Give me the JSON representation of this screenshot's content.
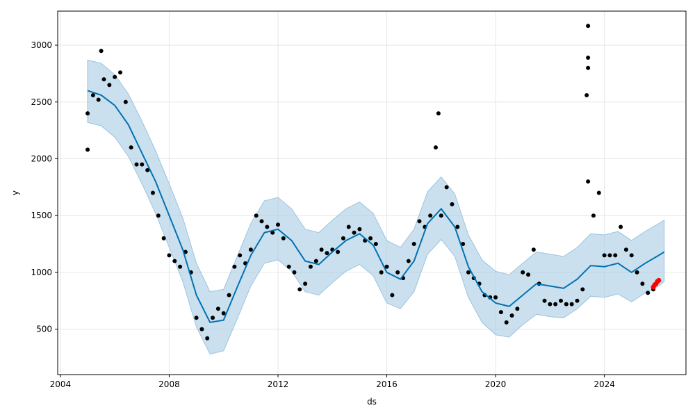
{
  "chart_data": {
    "type": "scatter",
    "xlabel": "ds",
    "ylabel": "y",
    "xlim": [
      2003.9,
      2027.0
    ],
    "ylim": [
      100,
      3300
    ],
    "x_ticks": [
      2004,
      2008,
      2012,
      2016,
      2020,
      2024
    ],
    "x_tick_labels": [
      "2004",
      "2008",
      "2012",
      "2016",
      "2020",
      "2024"
    ],
    "y_ticks": [
      500,
      1000,
      1500,
      2000,
      2500,
      3000
    ],
    "y_tick_labels": [
      "500",
      "1000",
      "1500",
      "2000",
      "2500",
      "3000"
    ],
    "grid": true,
    "colors": {
      "observed": "#000000",
      "recent": "#ff0000",
      "forecast": "#0072b2",
      "interval": "#a6cbe3",
      "interval_edge": "#9cc3e0",
      "grid": "#e6e6e6"
    },
    "observed": {
      "x": [
        2005.0,
        2005.2,
        2005.4,
        2005.6,
        2005.8,
        2006.0,
        2006.2,
        2006.4,
        2006.6,
        2006.8,
        2007.0,
        2007.2,
        2007.4,
        2007.6,
        2007.8,
        2008.0,
        2008.2,
        2008.4,
        2008.6,
        2008.8,
        2009.0,
        2009.2,
        2009.4,
        2009.6,
        2009.8,
        2010.0,
        2010.2,
        2010.4,
        2010.6,
        2010.8,
        2011.0,
        2011.2,
        2011.4,
        2011.6,
        2011.8,
        2012.0,
        2012.2,
        2012.4,
        2012.6,
        2012.8,
        2013.0,
        2013.2,
        2013.4,
        2013.6,
        2013.8,
        2014.0,
        2014.2,
        2014.4,
        2014.6,
        2014.8,
        2015.0,
        2015.2,
        2015.4,
        2015.6,
        2015.8,
        2016.0,
        2016.2,
        2016.4,
        2016.6,
        2016.8,
        2017.0,
        2017.2,
        2017.4,
        2017.6,
        2017.8,
        2018.0,
        2018.2,
        2018.4,
        2018.6,
        2018.8,
        2019.0,
        2019.2,
        2019.4,
        2019.6,
        2019.8,
        2020.0,
        2020.2,
        2020.4,
        2020.6,
        2020.8,
        2021.0,
        2021.2,
        2021.4,
        2021.6,
        2021.8,
        2022.0,
        2022.2,
        2022.4,
        2022.6,
        2022.8,
        2023.0,
        2023.2,
        2023.4,
        2023.6,
        2023.8,
        2024.0,
        2024.2,
        2024.4,
        2024.6,
        2024.8,
        2025.0,
        2025.2,
        2025.4,
        2025.6,
        2025.8
      ],
      "y": [
        2400,
        2560,
        2520,
        2700,
        2650,
        2720,
        2760,
        2500,
        2100,
        1950,
        1950,
        1900,
        1700,
        1500,
        1300,
        1150,
        1100,
        1050,
        1180,
        1000,
        600,
        500,
        420,
        600,
        680,
        640,
        800,
        1050,
        1150,
        1080,
        1200,
        1500,
        1450,
        1400,
        1350,
        1420,
        1300,
        1050,
        1000,
        850,
        900,
        1050,
        1100,
        1200,
        1170,
        1200,
        1180,
        1300,
        1400,
        1350,
        1380,
        1280,
        1300,
        1250,
        1000,
        1050,
        800,
        1000,
        950,
        1100,
        1250,
        1450,
        1400,
        1500,
        2100,
        1500,
        1750,
        1600,
        1400,
        1250,
        1000,
        950,
        900,
        800,
        780,
        780,
        650,
        560,
        620,
        680,
        1000,
        980,
        1200,
        900,
        750,
        720,
        720,
        750,
        720,
        720,
        750,
        850,
        1800,
        1500,
        1700,
        1150,
        1150,
        1150,
        1400,
        1200,
        1150,
        1000,
        900,
        820,
        850
      ],
      "spikes": [
        {
          "x": 2023.4,
          "y": 3170
        },
        {
          "x": 2023.4,
          "y": 2890
        },
        {
          "x": 2023.4,
          "y": 2800
        },
        {
          "x": 2023.35,
          "y": 2560
        },
        {
          "x": 2017.9,
          "y": 2400
        },
        {
          "x": 2005.0,
          "y": 2080
        },
        {
          "x": 2005.5,
          "y": 2950
        }
      ]
    },
    "recent": {
      "x": [
        2025.8,
        2025.85,
        2025.9,
        2025.95,
        2026.0
      ],
      "y": [
        870,
        890,
        900,
        920,
        930
      ]
    },
    "forecast": {
      "x": [
        2005.0,
        2005.5,
        2006.0,
        2006.5,
        2007.0,
        2007.5,
        2008.0,
        2008.5,
        2009.0,
        2009.5,
        2010.0,
        2010.5,
        2011.0,
        2011.5,
        2012.0,
        2012.5,
        2013.0,
        2013.5,
        2014.0,
        2014.5,
        2015.0,
        2015.5,
        2016.0,
        2016.5,
        2017.0,
        2017.5,
        2018.0,
        2018.5,
        2019.0,
        2019.5,
        2020.0,
        2020.5,
        2021.0,
        2021.5,
        2022.0,
        2022.5,
        2023.0,
        2023.5,
        2024.0,
        2024.5,
        2025.0,
        2025.5,
        2026.0,
        2026.2
      ],
      "yhat": [
        2600,
        2560,
        2470,
        2300,
        2050,
        1800,
        1500,
        1200,
        800,
        560,
        580,
        870,
        1150,
        1350,
        1380,
        1280,
        1100,
        1070,
        1180,
        1280,
        1340,
        1240,
        1000,
        940,
        1100,
        1430,
        1560,
        1400,
        1050,
        830,
        730,
        700,
        800,
        900,
        880,
        860,
        940,
        1060,
        1050,
        1080,
        1000,
        1080,
        1150,
        1180
      ],
      "yhat_lower": [
        2320,
        2290,
        2190,
        2020,
        1780,
        1520,
        1220,
        920,
        520,
        280,
        310,
        590,
        880,
        1080,
        1110,
        1010,
        830,
        800,
        910,
        1010,
        1070,
        970,
        730,
        680,
        830,
        1160,
        1290,
        1140,
        780,
        560,
        450,
        430,
        540,
        630,
        610,
        600,
        680,
        790,
        780,
        810,
        740,
        820,
        880,
        920
      ],
      "yhat_upper": [
        2870,
        2840,
        2740,
        2570,
        2330,
        2070,
        1780,
        1480,
        1080,
        830,
        850,
        1140,
        1430,
        1630,
        1660,
        1560,
        1380,
        1350,
        1460,
        1560,
        1620,
        1520,
        1280,
        1220,
        1380,
        1710,
        1840,
        1690,
        1330,
        1110,
        1010,
        980,
        1080,
        1180,
        1160,
        1140,
        1220,
        1340,
        1330,
        1360,
        1280,
        1360,
        1430,
        1460
      ]
    }
  }
}
